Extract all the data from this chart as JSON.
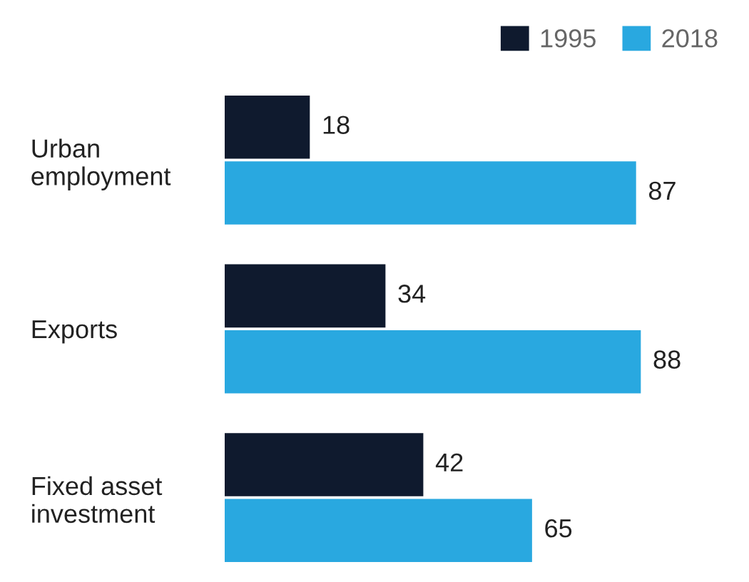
{
  "chart_data": {
    "type": "bar",
    "orientation": "horizontal",
    "categories": [
      "Urban\nemployment",
      "Exports",
      "Fixed asset\ninvestment"
    ],
    "series": [
      {
        "name": "1995",
        "color": "#0f1a2e",
        "values": [
          18,
          34,
          42
        ]
      },
      {
        "name": "2018",
        "color": "#29a8e0",
        "values": [
          87,
          88,
          65
        ]
      }
    ],
    "data_labels": true,
    "legend": "top right",
    "grid": false
  }
}
